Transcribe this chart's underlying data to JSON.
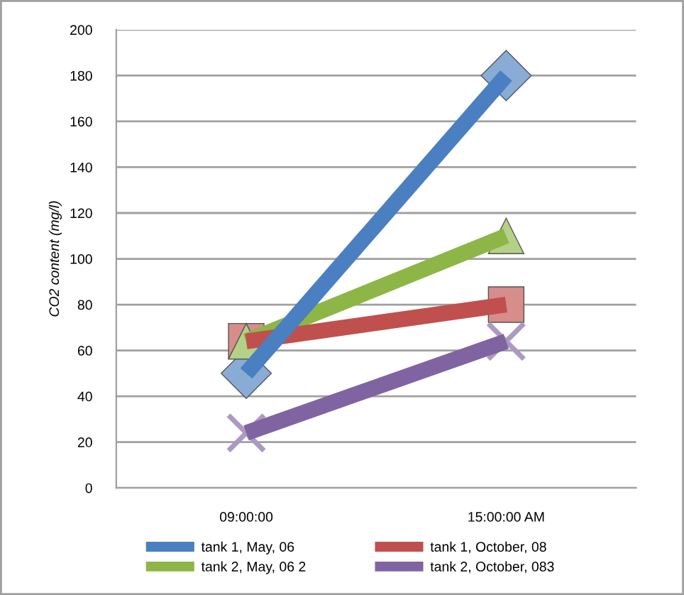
{
  "chart_data": {
    "type": "line",
    "ylabel": "CO2 content (mg/l)",
    "categories": [
      "09:00:00",
      "15:00:00 AM"
    ],
    "series": [
      {
        "name": "tank 1, May, 06",
        "color": "#4a7fc1",
        "marker": "diamond",
        "values": [
          50,
          180
        ]
      },
      {
        "name": "tank 1, October, 08",
        "color": "#c0504d",
        "marker": "square",
        "values": [
          64,
          80
        ]
      },
      {
        "name": "tank 2, May, 06 2",
        "color": "#8db647",
        "marker": "triangle",
        "values": [
          64,
          110
        ]
      },
      {
        "name": "tank 2, October, 083",
        "color": "#8064a2",
        "marker": "cross",
        "values": [
          24,
          64
        ]
      }
    ],
    "ylim": [
      0,
      200
    ],
    "yticks": [
      0,
      20,
      40,
      60,
      80,
      100,
      120,
      140,
      160,
      180,
      200
    ],
    "grid": "y",
    "legend": "bottom"
  }
}
